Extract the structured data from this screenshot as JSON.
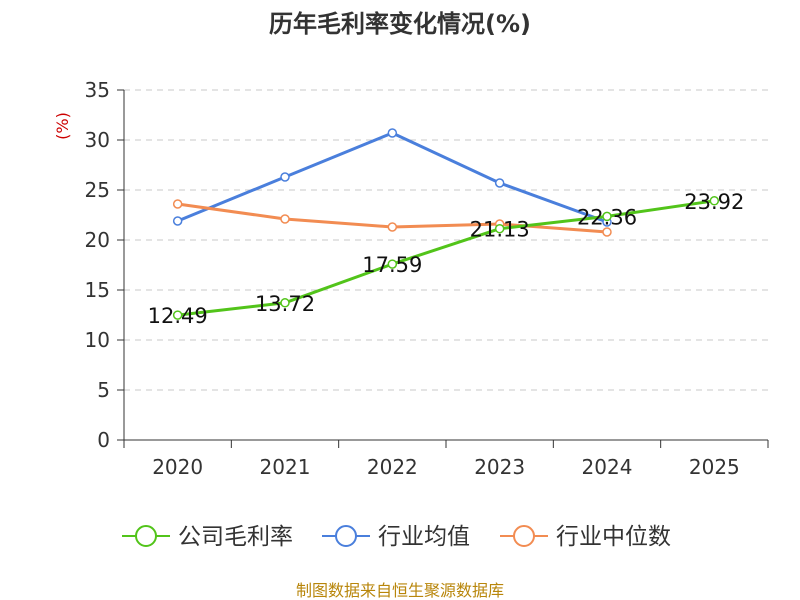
{
  "chart_data": {
    "type": "line",
    "title": "历年毛利率变化情况(%)",
    "ylabel": "(%)",
    "xlabel": "",
    "categories": [
      "2020",
      "2021",
      "2022",
      "2023",
      "2024",
      "2025"
    ],
    "ylim": [
      0,
      35
    ],
    "yticks": [
      0,
      5,
      10,
      15,
      20,
      25,
      30,
      35
    ],
    "grid": true,
    "legend_position": "bottom",
    "series": [
      {
        "name": "公司毛利率",
        "color": "#52c41a",
        "values": [
          12.49,
          13.72,
          17.59,
          21.13,
          22.36,
          23.92
        ],
        "labels": [
          "12.49",
          "13.72",
          "17.59",
          "21.13",
          "22.36",
          "23.92"
        ]
      },
      {
        "name": "行业均值",
        "color": "#4a7fdc",
        "values": [
          21.9,
          26.3,
          30.7,
          25.7,
          21.8,
          null
        ]
      },
      {
        "name": "行业中位数",
        "color": "#f28c52",
        "values": [
          23.6,
          22.1,
          21.3,
          21.6,
          20.8,
          null
        ]
      }
    ]
  },
  "footer": {
    "source": "制图数据来自恒生聚源数据库"
  }
}
